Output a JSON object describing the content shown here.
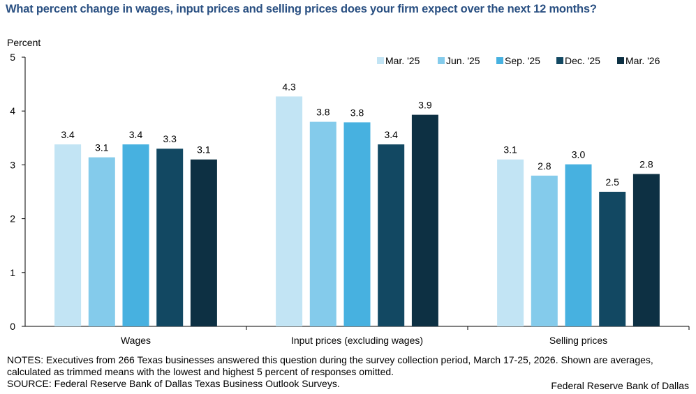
{
  "chart_data": {
    "type": "bar",
    "title": "What percent change in wages, input prices and selling prices does your firm expect over the next 12 months?",
    "xlabel": "",
    "ylabel": "Percent",
    "ylim": [
      0,
      5
    ],
    "yticks": [
      "0",
      "1",
      "2",
      "3",
      "4",
      "5"
    ],
    "grid": false,
    "legend_position": "top-right",
    "categories": [
      "Wages",
      "Input prices (excluding wages)",
      "Selling prices"
    ],
    "series": [
      {
        "name": "Mar. '25",
        "color": "#c2e4f4",
        "values": [
          3.4,
          4.3,
          3.1
        ]
      },
      {
        "name": "Jun. '25",
        "color": "#84cbeb",
        "values": [
          3.1,
          3.8,
          2.8
        ]
      },
      {
        "name": "Sep. '25",
        "color": "#47b1e0",
        "values": [
          3.4,
          3.8,
          3.0
        ]
      },
      {
        "name": "Dec. '25",
        "color": "#124862",
        "values": [
          3.3,
          3.4,
          2.5
        ]
      },
      {
        "name": "Mar. '26",
        "color": "#0d3043",
        "values": [
          3.1,
          3.9,
          2.8
        ]
      }
    ],
    "plotted_heights": [
      [
        3.38,
        4.27,
        3.1
      ],
      [
        3.14,
        3.8,
        2.8
      ],
      [
        3.38,
        3.79,
        3.01
      ],
      [
        3.3,
        3.38,
        2.5
      ],
      [
        3.1,
        3.93,
        2.83
      ]
    ],
    "data_labels": [
      [
        "3.4",
        "4.3",
        "3.1"
      ],
      [
        "3.1",
        "3.8",
        "2.8"
      ],
      [
        "3.4",
        "3.8",
        "3.0"
      ],
      [
        "3.3",
        "3.4",
        "2.5"
      ],
      [
        "3.1",
        "3.9",
        "2.8"
      ]
    ]
  },
  "notes": "NOTES: Executives from 266 Texas businesses answered this question during the survey collection period, March 17-25, 2026. Shown are averages, calculated as trimmed means with the lowest and highest 5 percent of responses omitted.",
  "source": "SOURCE: Federal Reserve Bank of Dallas Texas Business Outlook Surveys.",
  "credit": "Federal Reserve Bank of Dallas"
}
